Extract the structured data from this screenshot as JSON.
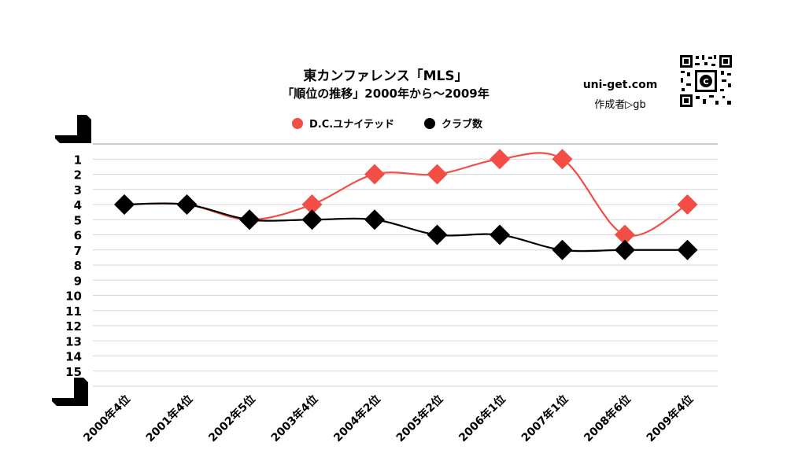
{
  "header": {
    "title": "東カンファレンス「MLS」",
    "subtitle": "「順位の推移」2000年から～2009年",
    "site": "uni-get.com",
    "author": "作成者▷gb"
  },
  "chart_data": {
    "type": "line",
    "title": "東カンファレンス「MLS」",
    "subtitle": "「順位の推移」2000年から～2009年",
    "categories": [
      "2000年4位",
      "2001年4位",
      "2002年5位",
      "2003年4位",
      "2004年2位",
      "2005年2位",
      "2006年1位",
      "2007年1位",
      "2008年6位",
      "2009年4位"
    ],
    "series": [
      {
        "name": "D.C.ユナイテッド",
        "color": "#f24e45",
        "values": [
          4,
          4,
          5,
          4,
          2,
          2,
          1,
          1,
          6,
          4
        ]
      },
      {
        "name": "クラブ数",
        "color": "#000000",
        "values": [
          4,
          4,
          5,
          5,
          5,
          6,
          6,
          7,
          7,
          7
        ]
      }
    ],
    "y_ticks": [
      "1",
      "2",
      "3",
      "4",
      "5",
      "6",
      "7",
      "8",
      "9",
      "10",
      "11",
      "12",
      "13",
      "14",
      "15"
    ],
    "ylim": [
      0,
      16
    ],
    "y_inverted": true,
    "grid": true,
    "legend_position": "top"
  }
}
